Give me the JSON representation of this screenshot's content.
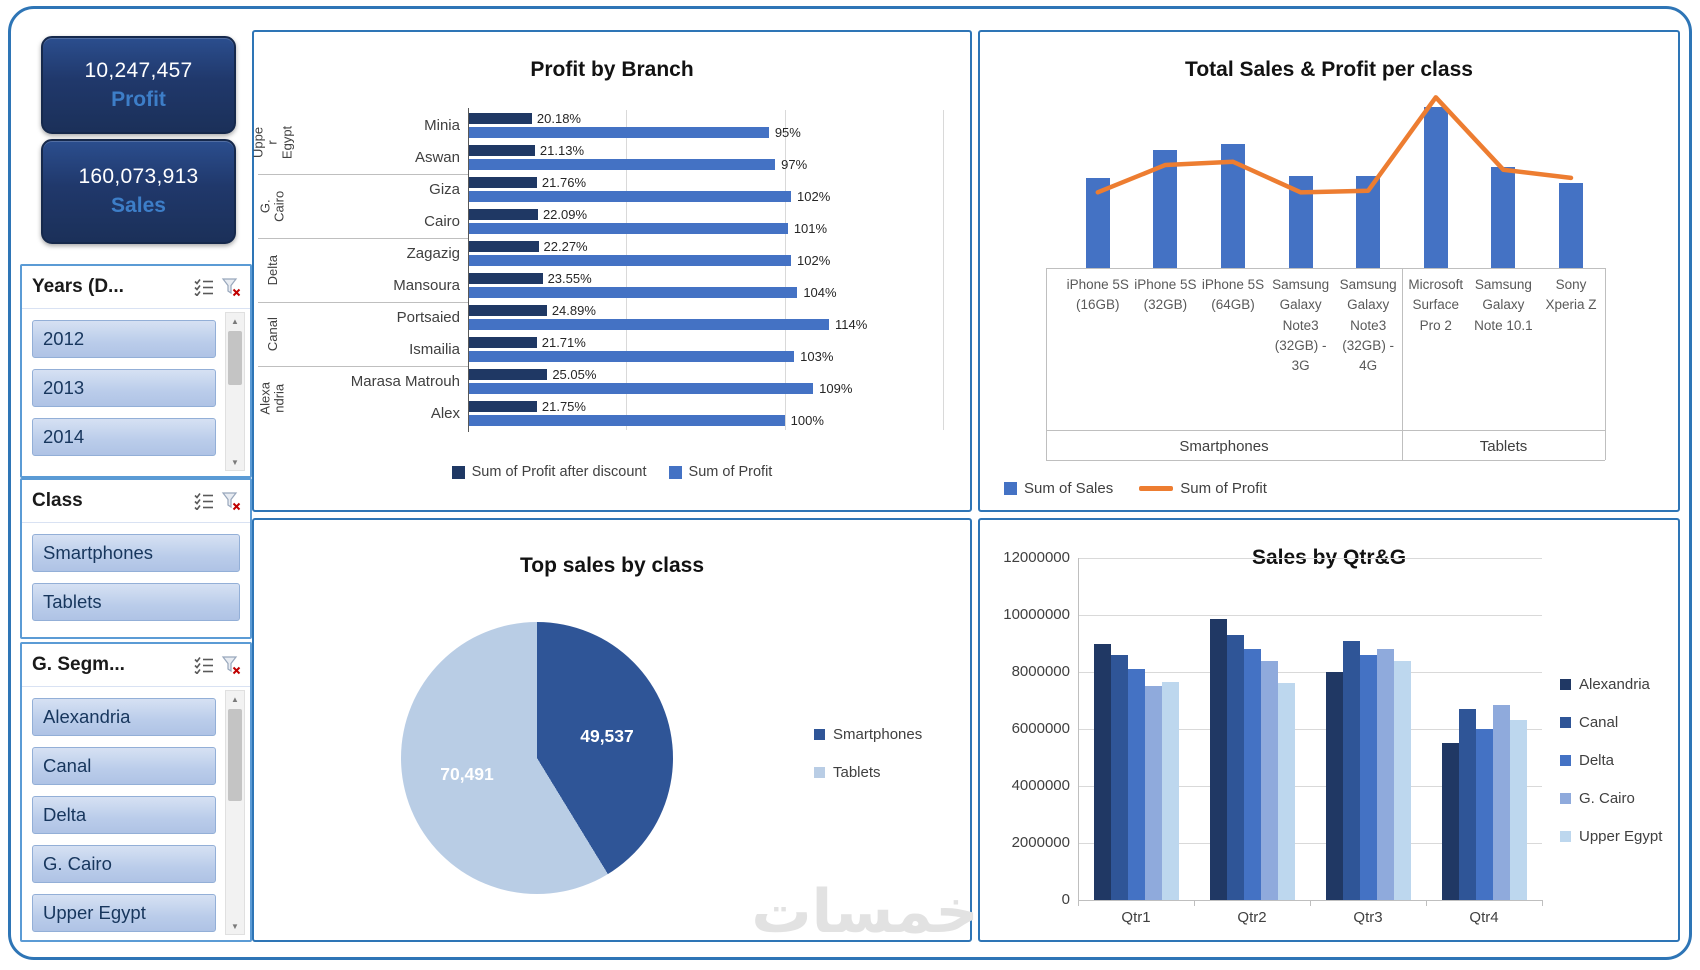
{
  "watermark": "خمسات",
  "kpis": [
    {
      "value": "10,247,457",
      "label": "Profit"
    },
    {
      "value": "160,073,913",
      "label": "Sales"
    }
  ],
  "slicers": [
    {
      "title": "Years (D...",
      "items": [
        "2012",
        "2013",
        "2014"
      ],
      "has_scrollbar": true
    },
    {
      "title": "Class",
      "items": [
        "Smartphones",
        "Tablets"
      ],
      "has_scrollbar": false
    },
    {
      "title": "G. Segm...",
      "items": [
        "Alexandria",
        "Canal",
        "Delta",
        "G. Cairo",
        "Upper Egypt"
      ],
      "has_scrollbar": true
    }
  ],
  "chart_data": [
    {
      "type": "bar",
      "orientation": "horizontal",
      "title": "Profit by Branch",
      "categories": [
        "Minia",
        "Aswan",
        "Giza",
        "Cairo",
        "Zagazig",
        "Mansoura",
        "Portsaied",
        "Ismailia",
        "Marasa Matrouh",
        "Alex"
      ],
      "category_groups": [
        {
          "label": "Upper Egypt",
          "span": 2
        },
        {
          "label": "G. Cairo",
          "span": 2
        },
        {
          "label": "Delta",
          "span": 2
        },
        {
          "label": "Canal",
          "span": 2
        },
        {
          "label": "Alexandria",
          "span": 2
        }
      ],
      "series": [
        {
          "name": "Sum of Profit after discount",
          "color": "#1F3864",
          "values": [
            20.18,
            21.13,
            21.76,
            22.09,
            22.27,
            23.55,
            24.89,
            21.71,
            25.05,
            21.75
          ],
          "labels": [
            "20.18%",
            "21.13%",
            "21.76%",
            "22.09%",
            "22.27%",
            "23.55%",
            "24.89%",
            "21.71%",
            "25.05%",
            "21.75%"
          ]
        },
        {
          "name": "Sum of Profit",
          "color": "#4472C4",
          "values": [
            95,
            97,
            102,
            101,
            102,
            104,
            114,
            103,
            109,
            100
          ],
          "labels": [
            "95%",
            "97%",
            "102%",
            "101%",
            "102%",
            "104%",
            "114%",
            "103%",
            "109%",
            "100%"
          ]
        }
      ],
      "xlim": [
        0,
        150
      ],
      "gridlines_pct": [
        50,
        100,
        150
      ],
      "legend_position": "bottom"
    },
    {
      "type": "combo",
      "title": "Total Sales & Profit per class",
      "categories": [
        "iPhone 5S (16GB)",
        "iPhone 5S (32GB)",
        "iPhone 5S (64GB)",
        "Samsung Galaxy Note3 (32GB) - 3G",
        "Samsung Galaxy Note3 (32GB) - 4G",
        "Microsoft Surface Pro 2",
        "Samsung Galaxy Note 10.1",
        "Sony Xperia Z"
      ],
      "category_groups": [
        {
          "label": "Smartphones",
          "span": 5
        },
        {
          "label": "Tablets",
          "span": 3
        }
      ],
      "bar_series": {
        "name": "Sum of Sales",
        "color": "#4472C4",
        "values": [
          56,
          73,
          77,
          57,
          57,
          100,
          63,
          53
        ]
      },
      "line_series": {
        "name": "Sum of Profit",
        "color": "#ED7D31",
        "values": [
          47,
          64,
          66,
          47,
          48,
          106,
          61,
          56
        ]
      },
      "note": "no value axis shown; values are estimated percent of tallest bar",
      "legend_position": "bottom-left"
    },
    {
      "type": "pie",
      "title": "Top sales by class",
      "categories": [
        "Smartphones",
        "Tablets"
      ],
      "values": [
        49537,
        70491
      ],
      "labels": [
        "49,537",
        "70,491"
      ],
      "colors": [
        "#2F5597",
        "#B9CDE5"
      ],
      "legend_position": "right"
    },
    {
      "type": "bar",
      "title": "Sales by Qtr&G",
      "categories": [
        "Qtr1",
        "Qtr2",
        "Qtr3",
        "Qtr4"
      ],
      "series": [
        {
          "name": "Alexandria",
          "color": "#203864",
          "values": [
            9000000,
            9850000,
            8000000,
            5500000
          ]
        },
        {
          "name": "Canal",
          "color": "#2F5597",
          "values": [
            8600000,
            9300000,
            9100000,
            6700000
          ]
        },
        {
          "name": "Delta",
          "color": "#4472C4",
          "values": [
            8100000,
            8800000,
            8600000,
            6000000
          ]
        },
        {
          "name": "G. Cairo",
          "color": "#8FAADC",
          "values": [
            7500000,
            8400000,
            8800000,
            6850000
          ]
        },
        {
          "name": "Upper Egypt",
          "color": "#BDD7EE",
          "values": [
            7650000,
            7600000,
            8400000,
            6300000
          ]
        }
      ],
      "ylim": [
        0,
        12000000
      ],
      "ytick_step": 2000000,
      "yticks": [
        "0",
        "2000000",
        "4000000",
        "6000000",
        "8000000",
        "10000000",
        "12000000"
      ],
      "grid": true,
      "legend_position": "right"
    }
  ]
}
